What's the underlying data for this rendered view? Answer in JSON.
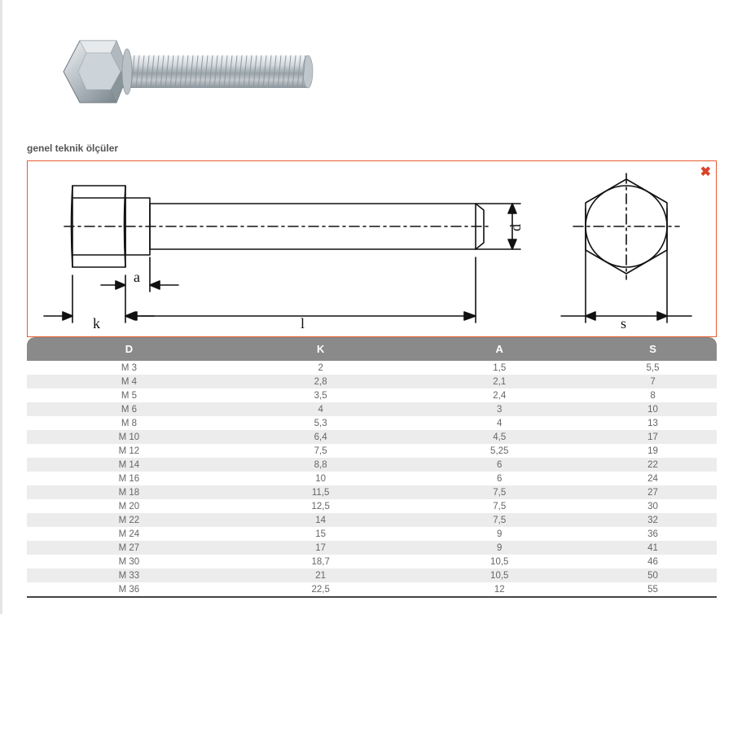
{
  "subtitle": "genel teknik ölçüler",
  "diagram": {
    "labels": {
      "k": "k",
      "a": "a",
      "l": "l",
      "d": "d",
      "s": "s"
    },
    "border_color": "#e65c2e",
    "close_icon_color": "#d9432a",
    "stroke": "#111111",
    "hex_size": 55
  },
  "bolt_photo": {
    "metal_light": "#e8ecef",
    "metal_mid": "#b8c0c6",
    "metal_dark": "#7e8a92",
    "thread_stroke": "#9aa4aa"
  },
  "table": {
    "header_bg": "#8a8a8a",
    "header_fg": "#ffffff",
    "row_even_bg": "#ececec",
    "row_odd_bg": "#ffffff",
    "cell_fg": "#666666",
    "columns": [
      "D",
      "K",
      "A",
      "S"
    ],
    "rows": [
      [
        "M 3",
        "2",
        "1,5",
        "5,5"
      ],
      [
        "M 4",
        "2,8",
        "2,1",
        "7"
      ],
      [
        "M 5",
        "3,5",
        "2,4",
        "8"
      ],
      [
        "M 6",
        "4",
        "3",
        "10"
      ],
      [
        "M 8",
        "5,3",
        "4",
        "13"
      ],
      [
        "M 10",
        "6,4",
        "4,5",
        "17"
      ],
      [
        "M 12",
        "7,5",
        "5,25",
        "19"
      ],
      [
        "M 14",
        "8,8",
        "6",
        "22"
      ],
      [
        "M 16",
        "10",
        "6",
        "24"
      ],
      [
        "M 18",
        "11,5",
        "7,5",
        "27"
      ],
      [
        "M 20",
        "12,5",
        "7,5",
        "30"
      ],
      [
        "M 22",
        "14",
        "7,5",
        "32"
      ],
      [
        "M 24",
        "15",
        "9",
        "36"
      ],
      [
        "M 27",
        "17",
        "9",
        "41"
      ],
      [
        "M 30",
        "18,7",
        "10,5",
        "46"
      ],
      [
        "M 33",
        "21",
        "10,5",
        "50"
      ],
      [
        "M 36",
        "22,5",
        "12",
        "55"
      ]
    ]
  }
}
